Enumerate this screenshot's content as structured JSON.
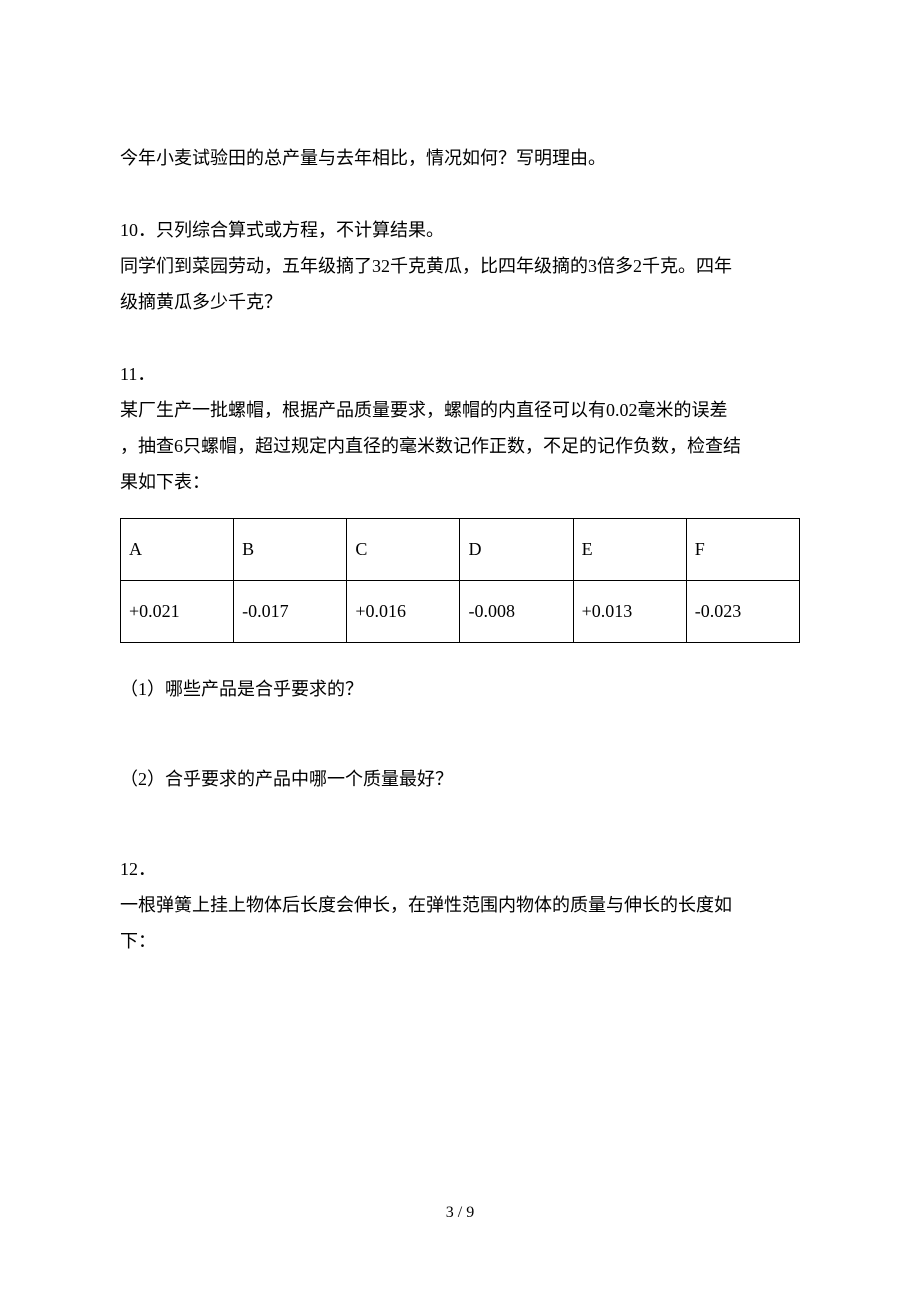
{
  "intro_paragraph": "今年小麦试验田的总产量与去年相比，情况如何？写明理由。",
  "q10": {
    "number": "10．",
    "title": "只列综合算式或方程，不计算结果。",
    "line1": "同学们到菜园劳动，五年级摘了32千克黄瓜，比四年级摘的3倍多2千克。四年",
    "line2": "级摘黄瓜多少千克？"
  },
  "q11": {
    "number": "11．",
    "line1": "某厂生产一批螺帽，根据产品质量要求，螺帽的内直径可以有0.02毫米的误差",
    "line2": "，抽查6只螺帽，超过规定内直径的毫米数记作正数，不足的记作负数，检查结",
    "line3": "果如下表：",
    "table": {
      "headers": [
        "A",
        "B",
        "C",
        "D",
        "E",
        "F"
      ],
      "values": [
        "+0.021",
        "-0.017",
        "+0.016",
        "-0.008",
        "+0.013",
        "-0.023"
      ]
    },
    "sub1": "（1）哪些产品是合乎要求的？",
    "sub2": "（2）合乎要求的产品中哪一个质量最好？"
  },
  "q12": {
    "number": "12．",
    "line1": "一根弹簧上挂上物体后长度会伸长，在弹性范围内物体的质量与伸长的长度如",
    "line2": "下："
  },
  "footer": "3 / 9"
}
